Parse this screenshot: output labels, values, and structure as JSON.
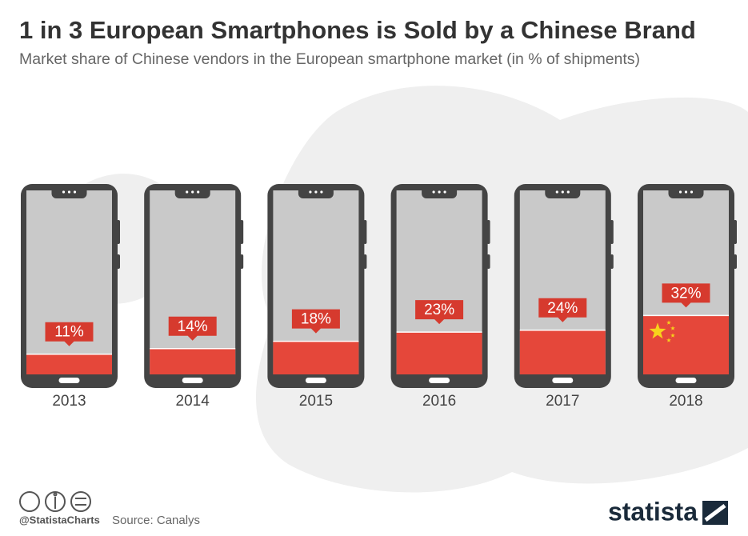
{
  "chart_data": {
    "type": "phone-bar",
    "title": "1 in 3 European Smartphones is Sold by a Chinese Brand",
    "subtitle": "Market share of Chinese vendors in the European smartphone market (in % of shipments)",
    "categories": [
      "2013",
      "2014",
      "2015",
      "2016",
      "2017",
      "2018"
    ],
    "values": [
      11,
      14,
      18,
      23,
      24,
      32
    ],
    "value_labels": [
      "11%",
      "14%",
      "18%",
      "23%",
      "24%",
      "32%"
    ],
    "color": "#e5473a",
    "ylim": [
      0,
      100
    ]
  },
  "footer": {
    "credit": "@StatistaCharts",
    "source": "Source: Canalys",
    "brand": "statista"
  }
}
